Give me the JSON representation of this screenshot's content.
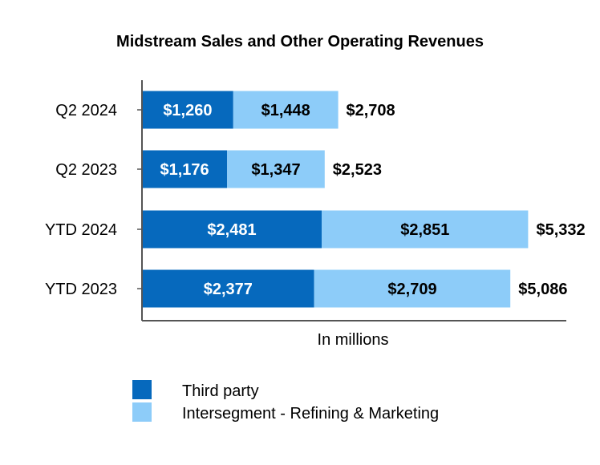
{
  "chart_data": {
    "type": "bar",
    "orientation": "horizontal",
    "stacked": true,
    "title": "Midstream Sales and Other Operating Revenues",
    "xlabel": "In millions",
    "ylabel": "",
    "categories": [
      "Q2 2024",
      "Q2 2023",
      "YTD 2024",
      "YTD 2023"
    ],
    "series": [
      {
        "name": "Third party",
        "color": "#0669BD",
        "values": [
          1260,
          1176,
          2481,
          2377
        ],
        "labels": [
          "$1,260",
          "$1,176",
          "$2,481",
          "$2,377"
        ]
      },
      {
        "name": "Intersegment - Refining & Marketing",
        "color": "#8DCCF9",
        "values": [
          1448,
          1347,
          2851,
          2709
        ],
        "labels": [
          "$1,448",
          "$1,347",
          "$2,851",
          "$2,709"
        ]
      }
    ],
    "totals": [
      2708,
      2523,
      5332,
      5086
    ],
    "total_labels": [
      "$2,708",
      "$2,523",
      "$5,332",
      "$5,086"
    ],
    "xlim": [
      0,
      5800
    ],
    "grid": false,
    "legend_position": "bottom-left"
  }
}
